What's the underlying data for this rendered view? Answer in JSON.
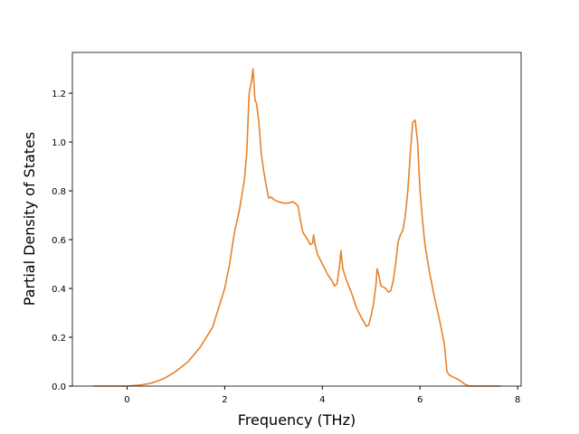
{
  "chart_data": {
    "type": "line",
    "xlabel": "Frequency (THz)",
    "ylabel": "Partial Density of States",
    "color": "#e8822a",
    "x": [
      -0.7,
      0.0,
      0.3,
      0.5,
      0.75,
      1.0,
      1.25,
      1.5,
      1.75,
      2.0,
      2.1,
      2.2,
      2.3,
      2.4,
      2.45,
      2.5,
      2.55,
      2.58,
      2.62,
      2.65,
      2.7,
      2.75,
      2.8,
      2.85,
      2.9,
      2.95,
      3.0,
      3.1,
      3.2,
      3.3,
      3.4,
      3.5,
      3.55,
      3.6,
      3.7,
      3.75,
      3.8,
      3.82,
      3.85,
      3.9,
      4.0,
      4.1,
      4.2,
      4.25,
      4.3,
      4.35,
      4.38,
      4.42,
      4.5,
      4.6,
      4.7,
      4.8,
      4.9,
      4.95,
      5.0,
      5.05,
      5.1,
      5.12,
      5.15,
      5.2,
      5.3,
      5.35,
      5.4,
      5.45,
      5.5,
      5.55,
      5.6,
      5.65,
      5.7,
      5.75,
      5.8,
      5.85,
      5.9,
      5.95,
      6.0,
      6.05,
      6.1,
      6.2,
      6.3,
      6.4,
      6.5,
      6.55,
      6.6,
      6.7,
      6.8,
      6.9,
      7.0,
      7.65
    ],
    "values": [
      0,
      0,
      0.005,
      0.012,
      0.03,
      0.06,
      0.1,
      0.16,
      0.24,
      0.4,
      0.5,
      0.63,
      0.72,
      0.84,
      0.95,
      1.2,
      1.25,
      1.3,
      1.17,
      1.16,
      1.08,
      0.95,
      0.88,
      0.82,
      0.77,
      0.775,
      0.765,
      0.755,
      0.75,
      0.75,
      0.755,
      0.74,
      0.68,
      0.63,
      0.6,
      0.58,
      0.585,
      0.62,
      0.58,
      0.54,
      0.5,
      0.46,
      0.43,
      0.41,
      0.42,
      0.49,
      0.555,
      0.48,
      0.43,
      0.38,
      0.32,
      0.28,
      0.245,
      0.25,
      0.29,
      0.34,
      0.42,
      0.48,
      0.46,
      0.41,
      0.4,
      0.385,
      0.39,
      0.43,
      0.5,
      0.59,
      0.62,
      0.64,
      0.7,
      0.8,
      0.95,
      1.08,
      1.09,
      1.0,
      0.8,
      0.68,
      0.58,
      0.46,
      0.36,
      0.27,
      0.17,
      0.06,
      0.045,
      0.035,
      0.025,
      0.01,
      0,
      0
    ],
    "xlim": [
      -1.12,
      8.07
    ],
    "ylim": [
      0,
      1.367
    ],
    "xticks": [
      0,
      2,
      4,
      6,
      8
    ],
    "yticks": [
      {
        "value": 0,
        "label": "0.0"
      },
      0.2,
      0.4,
      0.6,
      0.8,
      {
        "value": 1,
        "label": "1.0"
      },
      1.2
    ]
  }
}
